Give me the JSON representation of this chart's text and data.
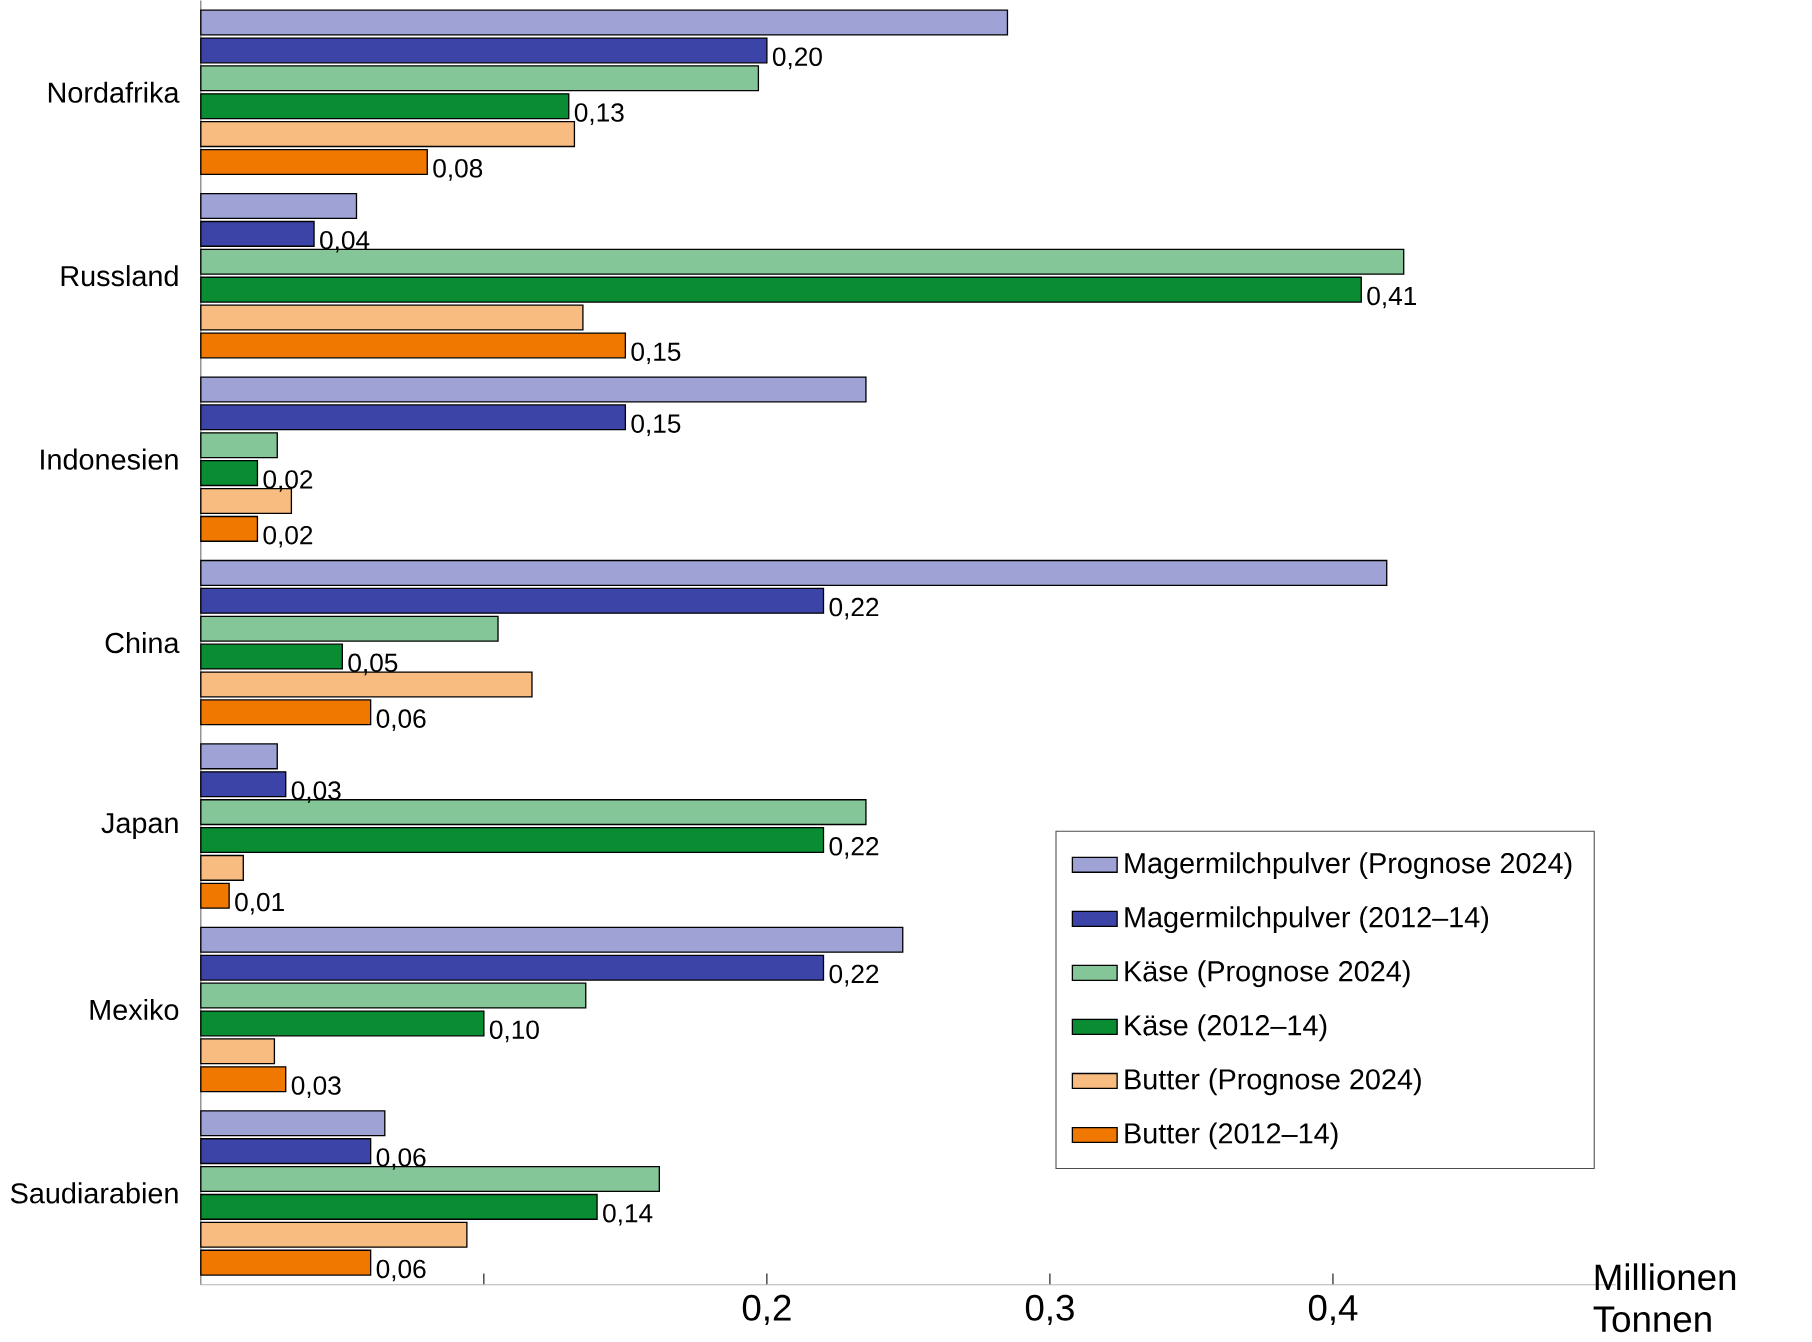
{
  "chart_data": {
    "type": "bar",
    "orientation": "horizontal",
    "categories": [
      "Nordafrika",
      "Russland",
      "Indonesien",
      "China",
      "Japan",
      "Mexiko",
      "Saudiarabien"
    ],
    "xlabel": "Millionen Tonnen",
    "xlim": [
      0,
      0.5
    ],
    "xticks": [
      {
        "value": 0.1,
        "label": null
      },
      {
        "value": 0.2,
        "label": "0,2"
      },
      {
        "value": 0.3,
        "label": "0,3"
      },
      {
        "value": 0.4,
        "label": "0,4"
      }
    ],
    "legend": "bottom right",
    "series": [
      {
        "name": "Magermilchpulver (Prognose 2024)",
        "color": "#9ea2d4",
        "values": [
          0.285,
          0.055,
          0.235,
          0.419,
          0.027,
          0.248,
          0.065
        ]
      },
      {
        "name": "Magermilchpulver (2012–14)",
        "color": "#3d44a8",
        "values": [
          0.2,
          0.04,
          0.15,
          0.22,
          0.03,
          0.22,
          0.06
        ],
        "value_labels": [
          "0,20",
          "0,04",
          "0,15",
          "0,22",
          "0,03",
          "0,22",
          "0,06"
        ]
      },
      {
        "name": "Käse (Prognose 2024)",
        "color": "#85c699",
        "values": [
          0.197,
          0.425,
          0.027,
          0.105,
          0.235,
          0.136,
          0.162
        ]
      },
      {
        "name": "Käse (2012–14)",
        "color": "#0a8c32",
        "values": [
          0.13,
          0.41,
          0.02,
          0.05,
          0.22,
          0.1,
          0.14
        ],
        "value_labels": [
          "0,13",
          "0,41",
          "0,02",
          "0,05",
          "0,22",
          "0,10",
          "0,14"
        ]
      },
      {
        "name": "Butter (Prognose 2024)",
        "color": "#f8bc80",
        "values": [
          0.132,
          0.135,
          0.032,
          0.117,
          0.015,
          0.026,
          0.094
        ]
      },
      {
        "name": "Butter (2012–14)",
        "color": "#f07800",
        "values": [
          0.08,
          0.15,
          0.02,
          0.06,
          0.01,
          0.03,
          0.06
        ],
        "value_labels": [
          "0,08",
          "0,15",
          "0,02",
          "0,06",
          "0,01",
          "0,03",
          "0,06"
        ]
      }
    ]
  }
}
